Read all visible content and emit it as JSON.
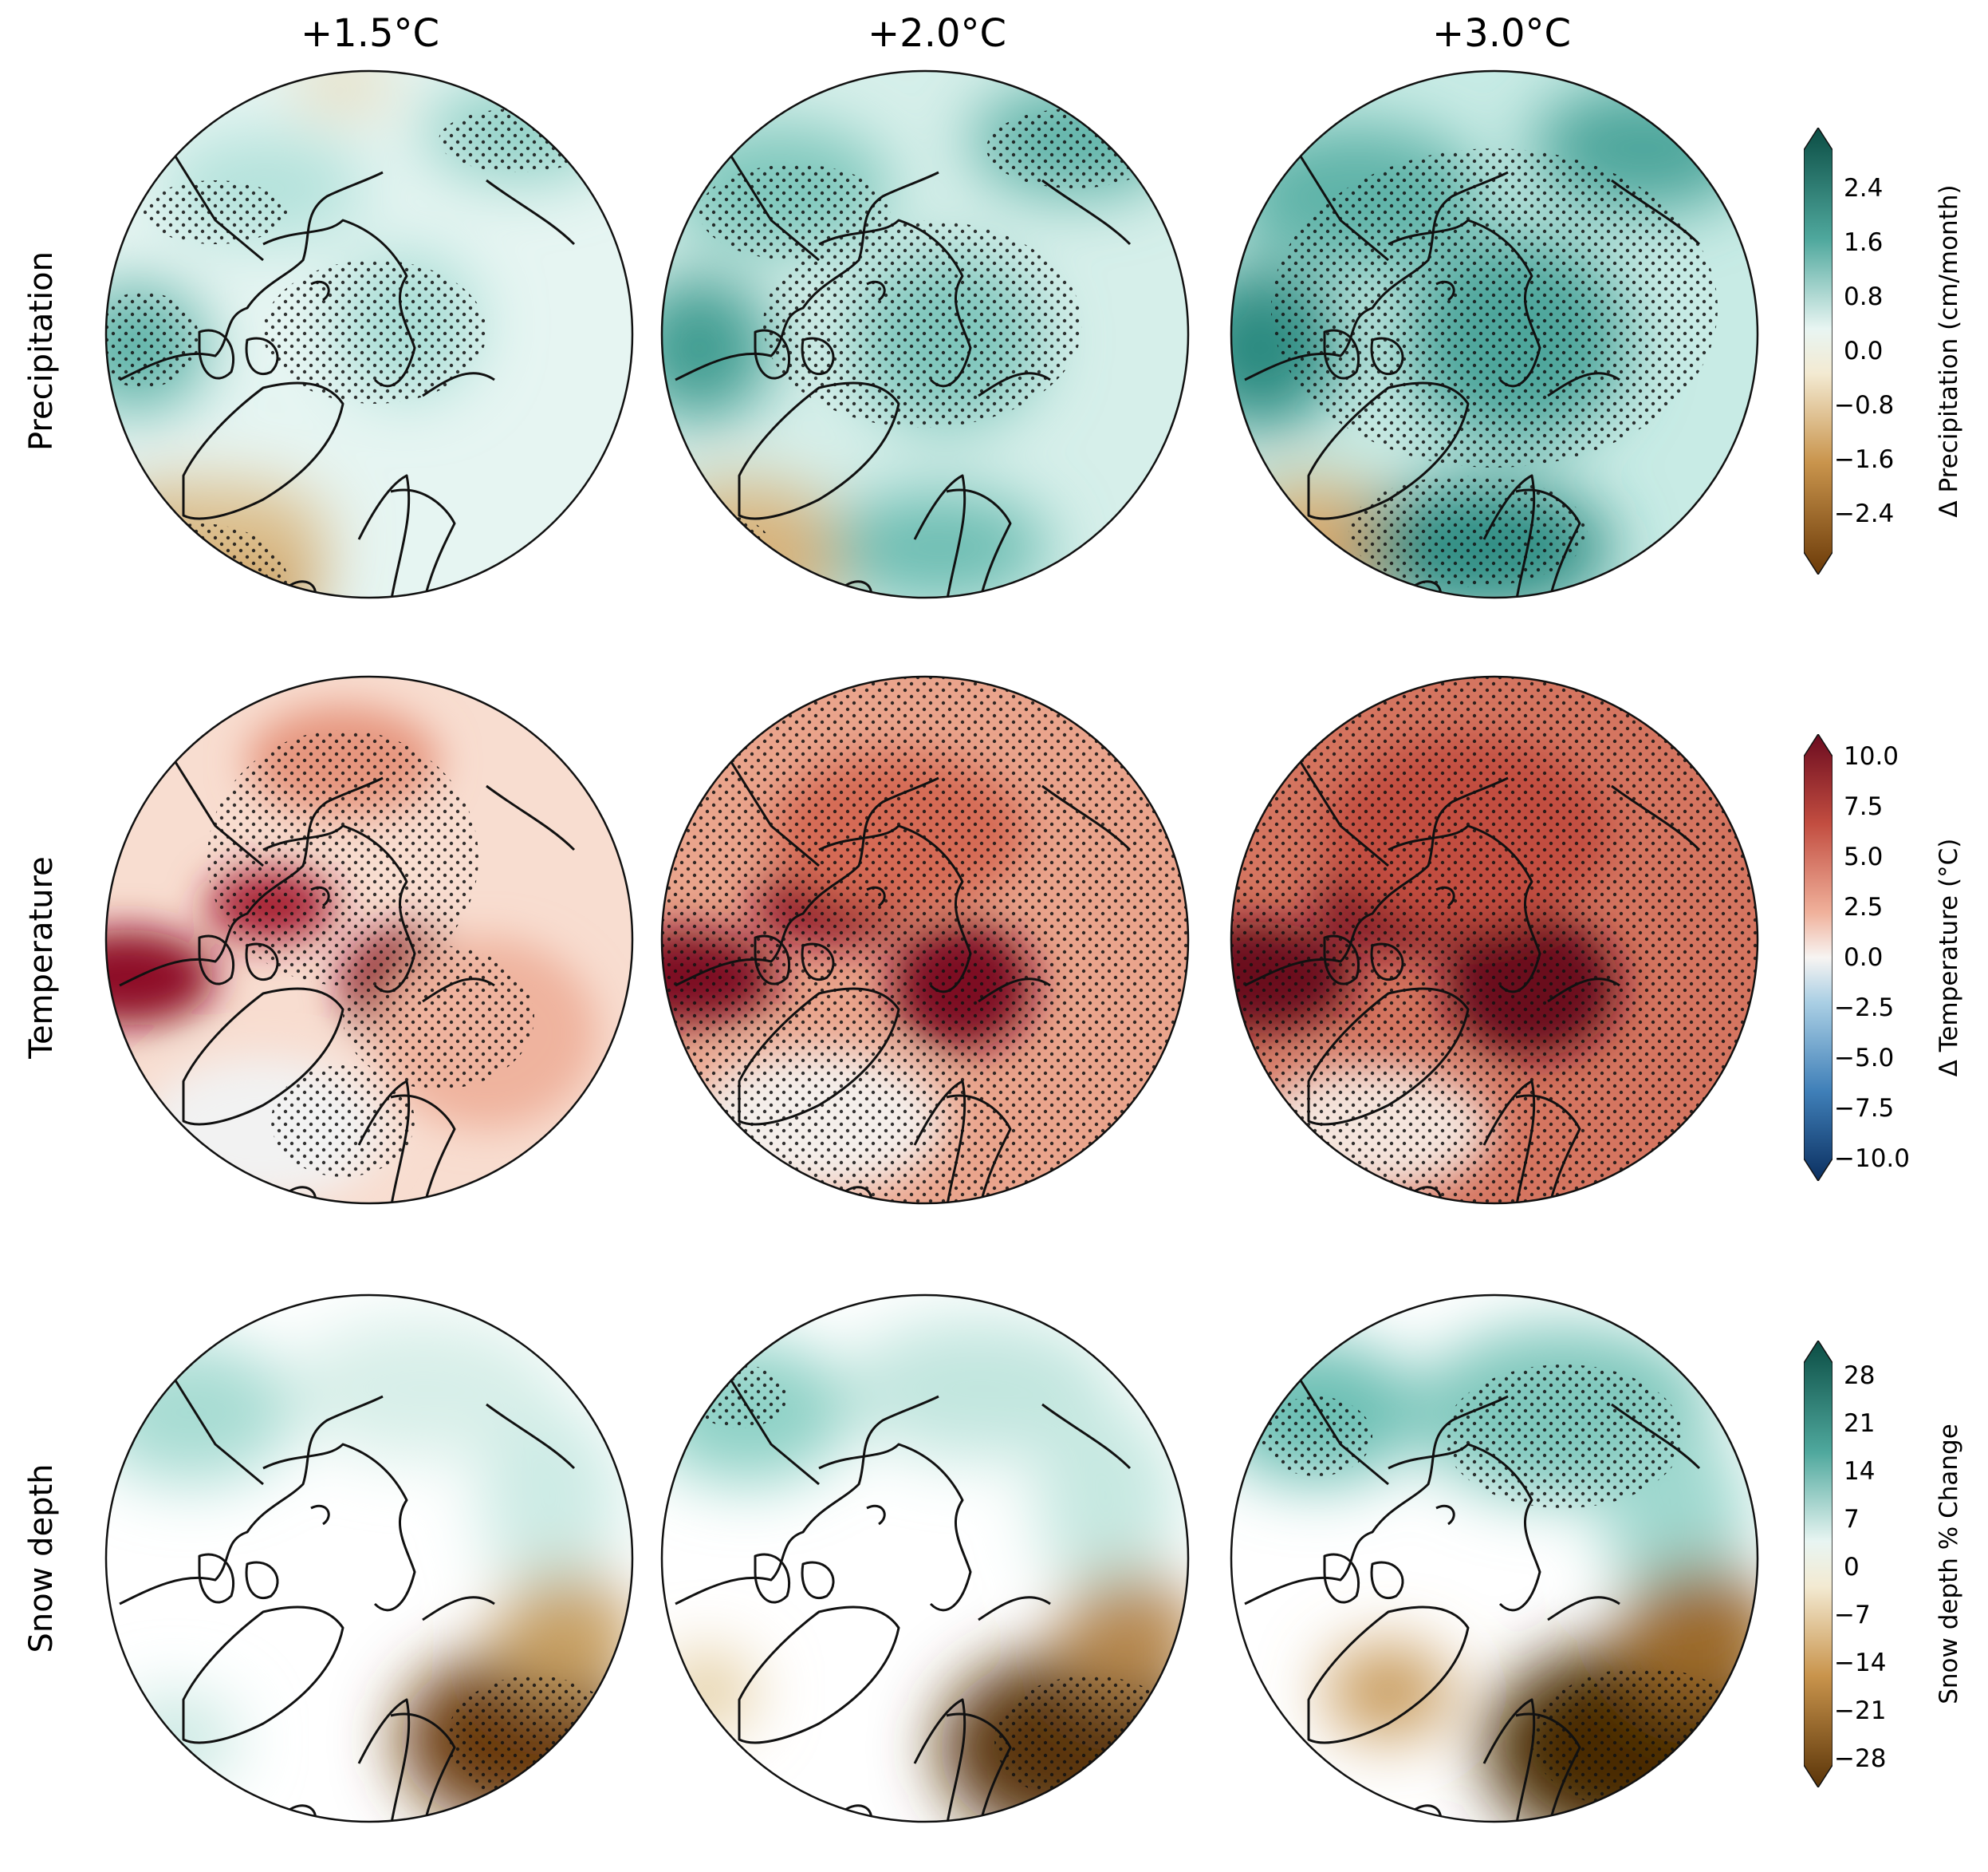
{
  "columns": [
    "+1.5°C",
    "+2.0°C",
    "+3.0°C"
  ],
  "rows": [
    "Precipitation",
    "Temperature",
    "Snow depth"
  ],
  "colorbars": {
    "precipitation": {
      "label": "Δ Precipitation (cm/month)",
      "ticks": [
        "2.4",
        "1.6",
        "0.8",
        "0.0",
        "−0.8",
        "−1.6",
        "−2.4"
      ],
      "low_color": "#6b3a08",
      "high_color": "#0b4d44"
    },
    "temperature": {
      "label": "Δ Temperature (°C)",
      "ticks": [
        "10.0",
        "7.5",
        "5.0",
        "2.5",
        "0.0",
        "−2.5",
        "−5.0",
        "−7.5",
        "−10.0"
      ],
      "low_color": "#0b2f60",
      "high_color": "#6b0b1f"
    },
    "snow": {
      "label": "Snow depth % Change",
      "ticks": [
        "28",
        "21",
        "14",
        "7",
        "0",
        "−7",
        "−14",
        "−21",
        "−28"
      ],
      "low_color": "#5a3408",
      "high_color": "#0b4d44"
    }
  },
  "colors": {
    "teal": "#1f8a80",
    "pale_teal": "#cdeeea",
    "tan": "#d6ac68",
    "dark_brown": "#6b3a08",
    "dark_red": "#8e1026",
    "red": "#d16a52",
    "pale_red": "#f6d2c3"
  }
}
